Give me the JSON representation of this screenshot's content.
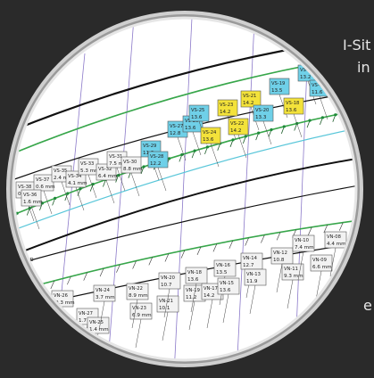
{
  "background_text": {
    "line1": "I-Sit",
    "line2": "in",
    "line3": "e"
  },
  "colors": {
    "lens_frame": "#bfbfbf",
    "plot_bg": "#ffffff",
    "label_blue": "#6fd0e8",
    "label_yellow": "#f3e23a",
    "label_white": "#f2f2f2",
    "curve_green": "#37a64a",
    "curve_black": "#111111",
    "curve_cyan": "#58c6d9",
    "curve_purple": "#8b79c9"
  },
  "upper_labels": [
    {
      "id": "VS-38",
      "val": "0.6 mm",
      "tone": "white"
    },
    {
      "id": "VS-37",
      "val": "0.6 mm",
      "tone": "white"
    },
    {
      "id": "VS-36",
      "val": "1.6 mm",
      "tone": "white"
    },
    {
      "id": "VS-35",
      "val": "2.4 mm",
      "tone": "white"
    },
    {
      "id": "VS-34",
      "val": "4.1 mm",
      "tone": "white"
    },
    {
      "id": "VS-33",
      "val": "5.3 mm",
      "tone": "white"
    },
    {
      "id": "VS-32",
      "val": "6.4 mm",
      "tone": "white"
    },
    {
      "id": "VS-31",
      "val": "7.5 mm",
      "tone": "white"
    },
    {
      "id": "VS-30",
      "val": "8.8 mm",
      "tone": "white"
    },
    {
      "id": "VS-29",
      "val": "11.3",
      "tone": "blue"
    },
    {
      "id": "VS-28",
      "val": "12.2",
      "tone": "blue"
    },
    {
      "id": "VS-27",
      "val": "12.8",
      "tone": "blue"
    },
    {
      "id": "VS-26",
      "val": "13.6",
      "tone": "blue"
    },
    {
      "id": "VS-25",
      "val": "13.6",
      "tone": "blue"
    },
    {
      "id": "VS-24",
      "val": "13.6",
      "tone": "yellow"
    },
    {
      "id": "VS-23",
      "val": "14.2",
      "tone": "yellow"
    },
    {
      "id": "VS-22",
      "val": "14.2",
      "tone": "yellow"
    },
    {
      "id": "VS-21",
      "val": "14.2",
      "tone": "yellow"
    },
    {
      "id": "VS-20",
      "val": "13.3",
      "tone": "blue"
    },
    {
      "id": "VS-19",
      "val": "13.5",
      "tone": "blue"
    },
    {
      "id": "VS-18",
      "val": "13.6",
      "tone": "yellow"
    },
    {
      "id": "VS-17",
      "val": "13.2",
      "tone": "blue"
    },
    {
      "id": "VS-16",
      "val": "11.6",
      "tone": "blue"
    }
  ],
  "lower_labels": [
    {
      "id": "VN-26",
      "val": "-0.3 mm"
    },
    {
      "id": "VN-27",
      "val": "1.7 mm"
    },
    {
      "id": "VN-25",
      "val": "1.4 mm"
    },
    {
      "id": "VN-24",
      "val": "3.7 mm"
    },
    {
      "id": "VN-23",
      "val": "6.9 mm"
    },
    {
      "id": "VN-22",
      "val": "8.9 mm"
    },
    {
      "id": "VN-21",
      "val": "10.1"
    },
    {
      "id": "VN-20",
      "val": "10.7"
    },
    {
      "id": "VN-19",
      "val": "11.2"
    },
    {
      "id": "VN-18",
      "val": "13.6"
    },
    {
      "id": "VN-17",
      "val": "14.2"
    },
    {
      "id": "VN-16",
      "val": "13.5"
    },
    {
      "id": "VN-15",
      "val": "13.6"
    },
    {
      "id": "VN-14",
      "val": "12.7"
    },
    {
      "id": "VN-13",
      "val": "11.9"
    },
    {
      "id": "VN-12",
      "val": "10.8"
    },
    {
      "id": "VN-11",
      "val": "9.3 mm"
    },
    {
      "id": "VN-10",
      "val": "7.4 mm"
    },
    {
      "id": "VN-09",
      "val": "6.6 mm"
    },
    {
      "id": "VN-08",
      "val": "4.4 mm"
    }
  ],
  "misc_label": "ump"
}
